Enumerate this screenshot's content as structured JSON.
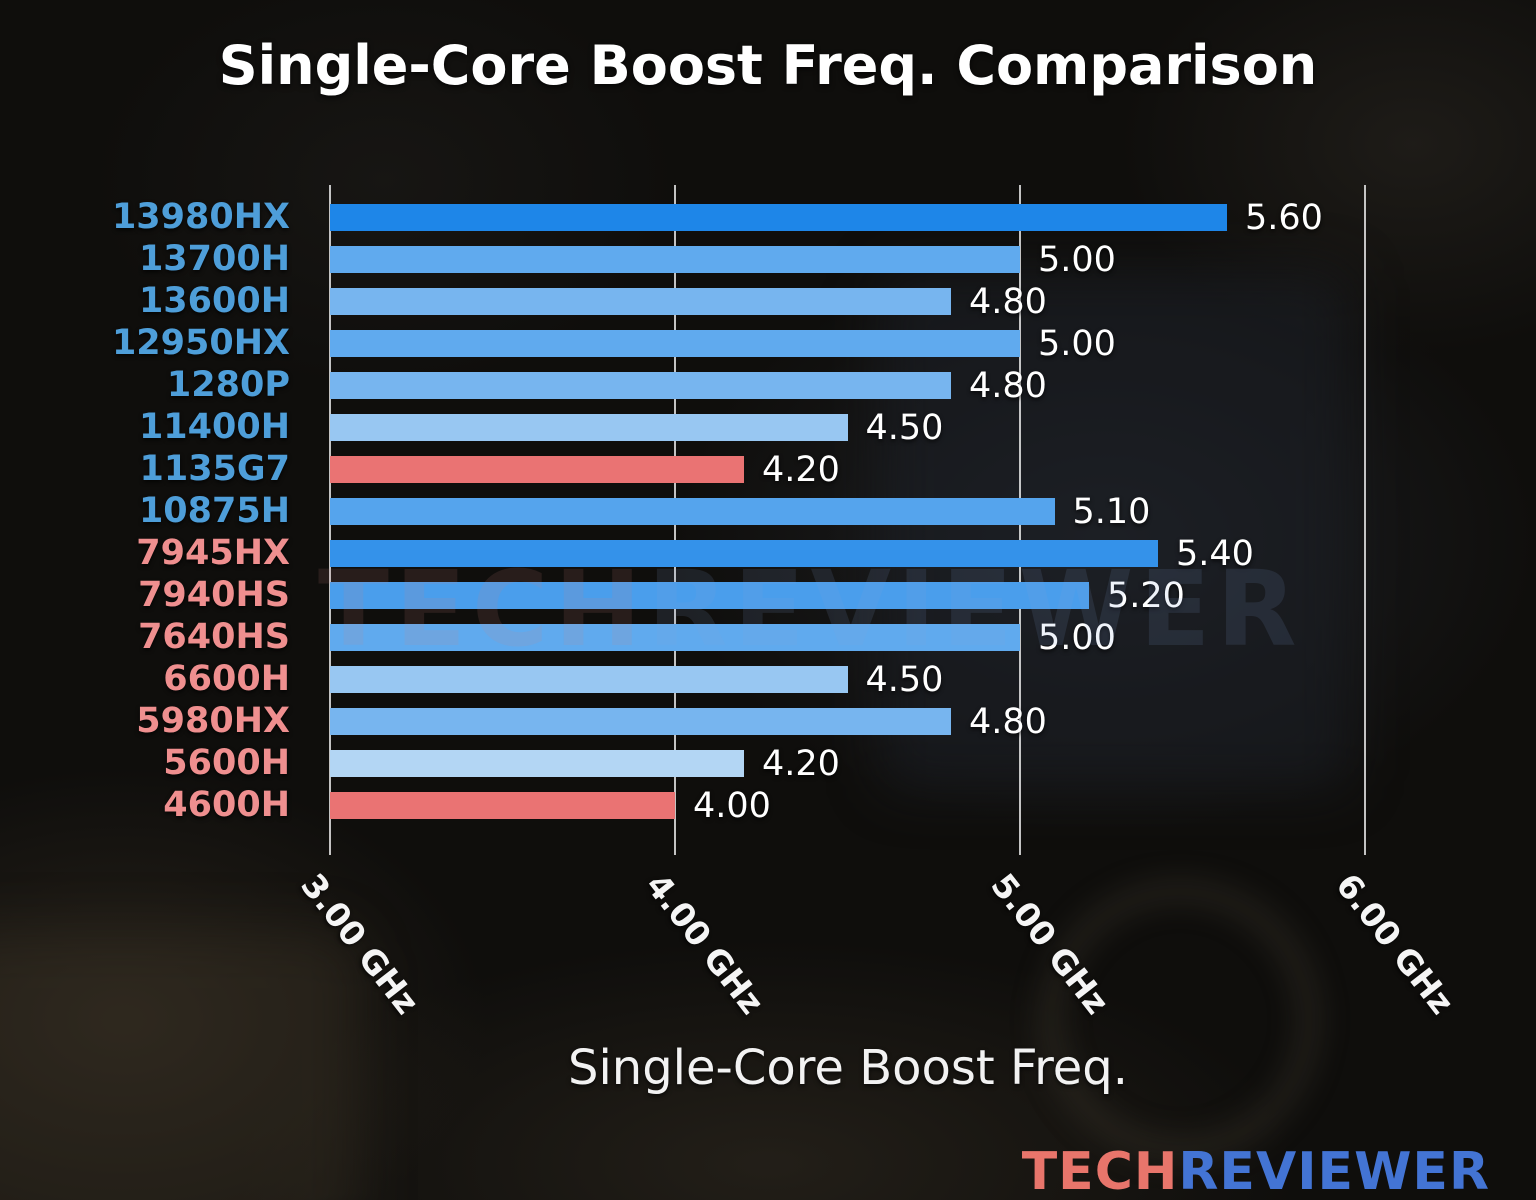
{
  "page": {
    "watermark": {
      "part1": "TECH",
      "part2": "REVIEWER"
    },
    "logo": {
      "part1": "TECH",
      "part2": "REVIEWER"
    }
  },
  "chart_data": {
    "type": "bar",
    "orientation": "horizontal",
    "title": "Single-Core Boost Freq. Comparison",
    "xlabel": "Single-Core Boost Freq.",
    "ylabel": "",
    "xlim": [
      3.0,
      6.38
    ],
    "grid": true,
    "legend": "none",
    "x_ticks": [
      {
        "value": 3.0,
        "label": "3.00 GHz"
      },
      {
        "value": 4.0,
        "label": "4.00 GHz"
      },
      {
        "value": 5.0,
        "label": "5.00 GHz"
      },
      {
        "value": 6.0,
        "label": "6.00 GHz"
      }
    ],
    "colors": {
      "intel_label": "#4e9ed9",
      "amd_label": "#ef8f8f",
      "highlight_bar": "#ea7373",
      "title_text": "#ffffff",
      "value_text": "#ffffff"
    },
    "rows": [
      {
        "category": "13980HX",
        "value": 5.6,
        "value_label": "5.60",
        "bar_color": "#1e86e8",
        "category_color": "#4e9ed9"
      },
      {
        "category": "13700H",
        "value": 5.0,
        "value_label": "5.00",
        "bar_color": "#60aaee",
        "category_color": "#4e9ed9"
      },
      {
        "category": "13600H",
        "value": 4.8,
        "value_label": "4.80",
        "bar_color": "#77b5ef",
        "category_color": "#4e9ed9"
      },
      {
        "category": "12950HX",
        "value": 5.0,
        "value_label": "5.00",
        "bar_color": "#60aaee",
        "category_color": "#4e9ed9"
      },
      {
        "category": "1280P",
        "value": 4.8,
        "value_label": "4.80",
        "bar_color": "#77b5ef",
        "category_color": "#4e9ed9"
      },
      {
        "category": "11400H",
        "value": 4.5,
        "value_label": "4.50",
        "bar_color": "#98c7f2",
        "category_color": "#4e9ed9"
      },
      {
        "category": "1135G7",
        "value": 4.2,
        "value_label": "4.20",
        "bar_color": "#ea7373",
        "category_color": "#4e9ed9"
      },
      {
        "category": "10875H",
        "value": 5.1,
        "value_label": "5.10",
        "bar_color": "#55a4ed",
        "category_color": "#4e9ed9"
      },
      {
        "category": "7945HX",
        "value": 5.4,
        "value_label": "5.40",
        "bar_color": "#3492ea",
        "category_color": "#ef8f8f"
      },
      {
        "category": "7940HS",
        "value": 5.2,
        "value_label": "5.20",
        "bar_color": "#4a9eec",
        "category_color": "#ef8f8f"
      },
      {
        "category": "7640HS",
        "value": 5.0,
        "value_label": "5.00",
        "bar_color": "#60aaee",
        "category_color": "#ef8f8f"
      },
      {
        "category": "6600H",
        "value": 4.5,
        "value_label": "4.50",
        "bar_color": "#98c7f2",
        "category_color": "#ef8f8f"
      },
      {
        "category": "5980HX",
        "value": 4.8,
        "value_label": "4.80",
        "bar_color": "#77b5ef",
        "category_color": "#ef8f8f"
      },
      {
        "category": "5600H",
        "value": 4.2,
        "value_label": "4.20",
        "bar_color": "#b3d6f4",
        "category_color": "#ef8f8f"
      },
      {
        "category": "4600H",
        "value": 4.0,
        "value_label": "4.00",
        "bar_color": "#ea7373",
        "category_color": "#ef8f8f"
      }
    ]
  }
}
